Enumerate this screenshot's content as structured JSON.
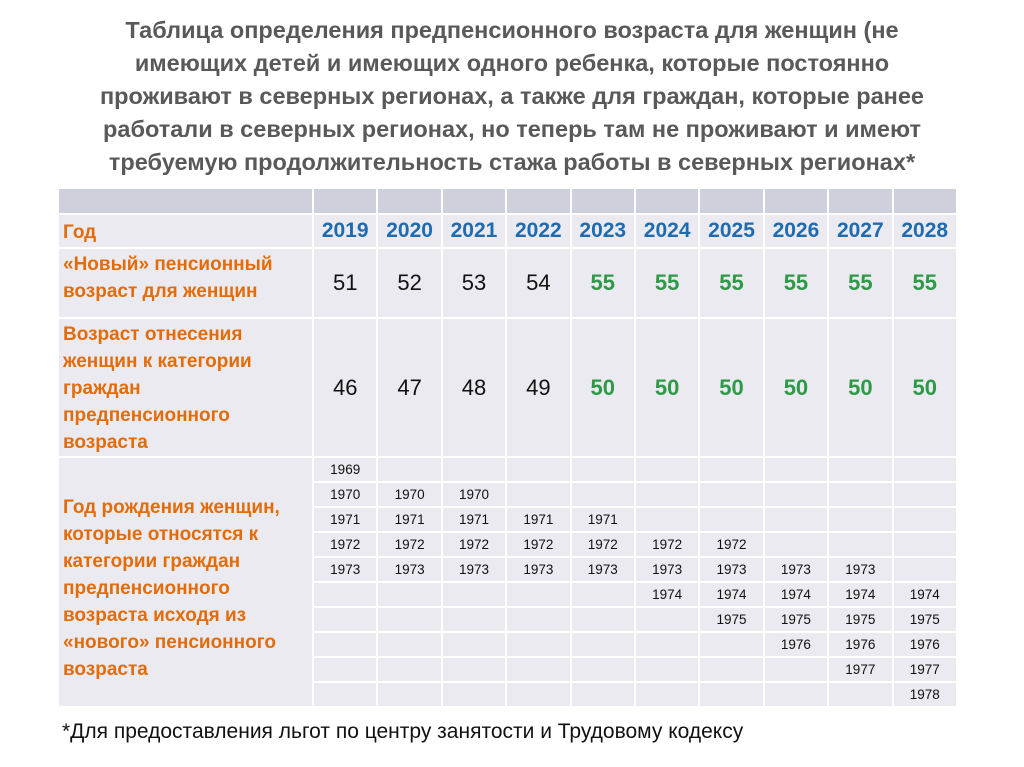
{
  "title_lines": [
    "Таблица определения предпенсионного возраста для женщин (не",
    "имеющих детей и имеющих одного ребенка, которые постоянно",
    "проживают в  северных регионах, а также для граждан, которые ранее",
    "работали в северных регионах, но теперь там не проживают и имеют",
    "требуемую продолжительность стажа работы в северных регионах*"
  ],
  "table": {
    "year_label": "Год",
    "years": [
      "2019",
      "2020",
      "2021",
      "2022",
      "2023",
      "2024",
      "2025",
      "2026",
      "2027",
      "2028"
    ],
    "pension_age_label": "«Новый» пенсионный возраст для женщин",
    "pension_ages": [
      "51",
      "52",
      "53",
      "54",
      "55",
      "55",
      "55",
      "55",
      "55",
      "55"
    ],
    "prepension_age_label": "Возраст отнесения женщин  к категории граждан предпенсионного возраста",
    "prepension_ages": [
      "46",
      "47",
      "48",
      "49",
      "50",
      "50",
      "50",
      "50",
      "50",
      "50"
    ],
    "birth_label": "Год рождения женщин, которые относятся к категории граждан предпенсионного возраста исходя из «нового» пенсионного возраста",
    "birth_years": [
      [
        "1969",
        "",
        "",
        "",
        "",
        "",
        "",
        "",
        "",
        ""
      ],
      [
        "1970",
        "1970",
        "1970",
        "",
        "",
        "",
        "",
        "",
        "",
        ""
      ],
      [
        "1971",
        "1971",
        "1971",
        "1971",
        "1971",
        "",
        "",
        "",
        "",
        ""
      ],
      [
        "1972",
        "1972",
        "1972",
        "1972",
        "1972",
        "1972",
        "1972",
        "",
        "",
        ""
      ],
      [
        "1973",
        "1973",
        "1973",
        "1973",
        "1973",
        "1973",
        "1973",
        "1973",
        "1973",
        ""
      ],
      [
        "",
        "",
        "",
        "",
        "",
        "1974",
        "1974",
        "1974",
        "1974",
        "1974"
      ],
      [
        "",
        "",
        "",
        "",
        "",
        "",
        "1975",
        "1975",
        "1975",
        "1975"
      ],
      [
        "",
        "",
        "",
        "",
        "",
        "",
        "",
        "1976",
        "1976",
        "1976"
      ],
      [
        "",
        "",
        "",
        "",
        "",
        "",
        "",
        "",
        "1977",
        "1977"
      ],
      [
        "",
        "",
        "",
        "",
        "",
        "",
        "",
        "",
        "",
        "1978"
      ]
    ]
  },
  "highlight_from_index": 4,
  "footnote": "*Для предоставления льгот по центру занятости и Трудовому кодексу",
  "colors": {
    "label": "#e36c09",
    "year": "#1f6bb0",
    "highlight": "#2e9a48",
    "title": "#595959"
  }
}
